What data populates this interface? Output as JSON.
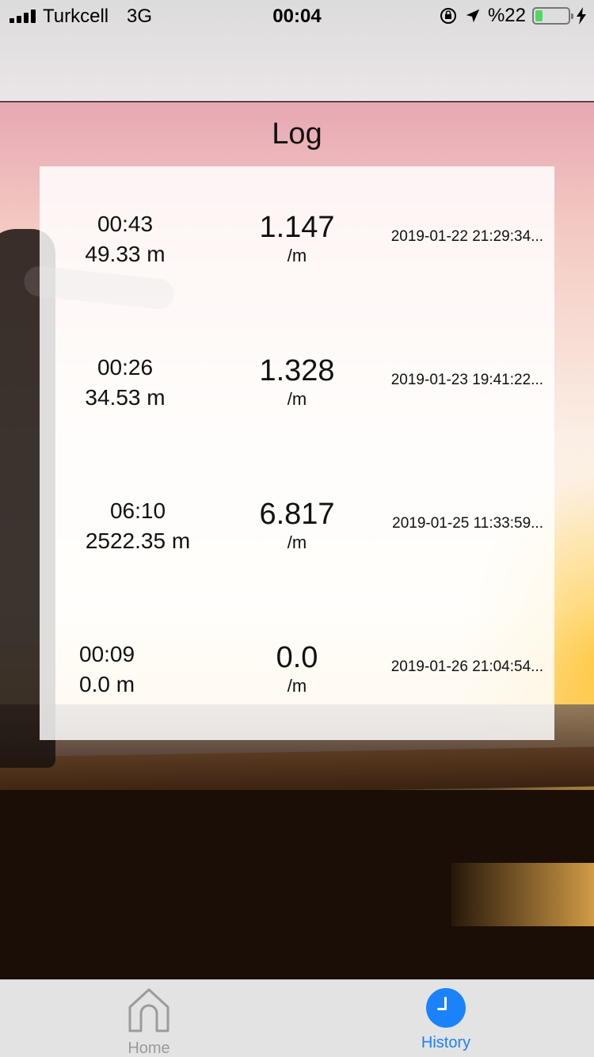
{
  "status_bar": {
    "carrier": "Turkcell",
    "network": "3G",
    "time": "00:04",
    "battery_text": "%22",
    "battery_level": 0.22,
    "battery_color": "#4cd964"
  },
  "header": {
    "title": "Log"
  },
  "log_entries": [
    {
      "duration": "00:43",
      "distance": "49.33 m",
      "rate": "1.147",
      "rate_unit": "/m",
      "datetime": "2019-01-22 21:29:34..."
    },
    {
      "duration": "00:26",
      "distance": "34.53 m",
      "rate": "1.328",
      "rate_unit": "/m",
      "datetime": "2019-01-23 19:41:22..."
    },
    {
      "duration": "06:10",
      "distance": "2522.35 m",
      "rate": "6.817",
      "rate_unit": "/m",
      "datetime": "2019-01-25 11:33:59..."
    },
    {
      "duration": "00:09",
      "distance": "0.0 m",
      "rate": "0.0",
      "rate_unit": "/m",
      "datetime": "2019-01-26 21:04:54..."
    }
  ],
  "tab_bar": {
    "tabs": [
      {
        "label": "Home",
        "icon": "home-icon",
        "active": false
      },
      {
        "label": "History",
        "icon": "clock-icon",
        "active": true
      }
    ],
    "active_color": "#1a82fb",
    "inactive_color": "#9b9b9b"
  }
}
